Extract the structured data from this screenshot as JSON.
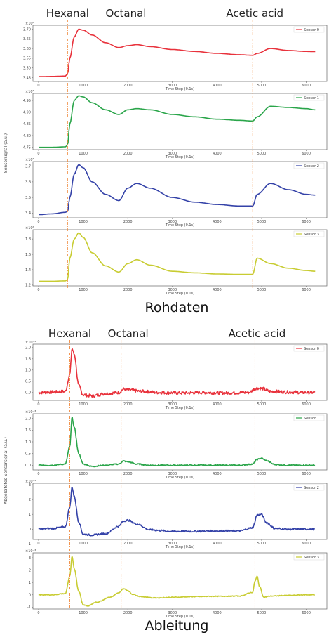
{
  "chart_data": [
    {
      "type": "line",
      "caption": "Rohdaten",
      "events": [
        {
          "label": "Hexanal",
          "x": 650
        },
        {
          "label": "Octanal",
          "x": 1800
        },
        {
          "label": "Acetic acid",
          "x": 4800
        }
      ],
      "ylabel": "Sensorsignal (a.u.)",
      "panels": [
        {
          "legend": "Sensor 0",
          "color": "#e8323c",
          "multiplier": "×10⁶",
          "xlabel": "Time Step (0.1s)",
          "ylim": [
            3.43,
            3.72
          ],
          "yticks": [
            "3.45",
            "3.50",
            "3.55",
            "3.60",
            "3.65",
            "3.70"
          ],
          "xticks": [
            "0",
            "1000",
            "2000",
            "3000",
            "4000",
            "5000",
            "6000"
          ],
          "x": [
            0,
            300,
            600,
            650,
            700,
            800,
            900,
            1000,
            1200,
            1500,
            1800,
            2000,
            2200,
            2500,
            3000,
            3500,
            4000,
            4500,
            4800,
            4900,
            5200,
            5600,
            6000,
            6200
          ],
          "y": [
            3.455,
            3.456,
            3.458,
            3.47,
            3.55,
            3.66,
            3.7,
            3.695,
            3.67,
            3.63,
            3.605,
            3.615,
            3.62,
            3.61,
            3.595,
            3.585,
            3.575,
            3.568,
            3.565,
            3.575,
            3.6,
            3.59,
            3.585,
            3.584
          ]
        },
        {
          "legend": "Sensor 1",
          "color": "#2aa54a",
          "multiplier": "×10⁶",
          "xlabel": "Time Step (0.1s)",
          "ylim": [
            4.74,
            4.98
          ],
          "yticks": [
            "4.75",
            "4.80",
            "4.85",
            "4.90",
            "4.95"
          ],
          "xticks": [
            "0",
            "1000",
            "2000",
            "3000",
            "4000",
            "5000",
            "6000"
          ],
          "x": [
            0,
            300,
            600,
            650,
            700,
            800,
            900,
            1000,
            1200,
            1500,
            1800,
            2000,
            2200,
            2500,
            3000,
            3500,
            4000,
            4500,
            4800,
            4900,
            5200,
            5600,
            6000,
            6200
          ],
          "y": [
            4.75,
            4.75,
            4.752,
            4.76,
            4.85,
            4.95,
            4.97,
            4.965,
            4.94,
            4.91,
            4.89,
            4.91,
            4.915,
            4.91,
            4.89,
            4.88,
            4.87,
            4.865,
            4.862,
            4.88,
            4.925,
            4.92,
            4.915,
            4.91
          ]
        },
        {
          "legend": "Sensor 2",
          "color": "#3442a8",
          "multiplier": "×10⁶",
          "xlabel": "Time Step (0.1s)",
          "ylim": [
            3.37,
            3.73
          ],
          "yticks": [
            "3.4",
            "3.5",
            "3.6",
            "3.7"
          ],
          "xticks": [
            "0",
            "1000",
            "2000",
            "3000",
            "4000",
            "5000",
            "6000"
          ],
          "x": [
            0,
            300,
            600,
            650,
            700,
            800,
            900,
            1000,
            1200,
            1500,
            1800,
            2000,
            2200,
            2500,
            3000,
            3500,
            4000,
            4500,
            4800,
            4900,
            5200,
            5600,
            6000,
            6200
          ],
          "y": [
            3.39,
            3.395,
            3.405,
            3.41,
            3.5,
            3.65,
            3.71,
            3.69,
            3.6,
            3.52,
            3.48,
            3.56,
            3.59,
            3.56,
            3.5,
            3.47,
            3.455,
            3.445,
            3.445,
            3.52,
            3.59,
            3.55,
            3.52,
            3.515
          ]
        },
        {
          "legend": "Sensor 3",
          "color": "#c8cc32",
          "multiplier": "×10⁶",
          "xlabel": "Time Step (0.1s)",
          "ylim": [
            1.19,
            1.92
          ],
          "yticks": [
            "1.2",
            "1.4",
            "1.6",
            "1.8"
          ],
          "xticks": [
            "0",
            "1000",
            "2000",
            "3000",
            "4000",
            "5000",
            "6000"
          ],
          "x": [
            0,
            300,
            600,
            650,
            700,
            800,
            900,
            1000,
            1200,
            1500,
            1800,
            2000,
            2200,
            2500,
            3000,
            3500,
            4000,
            4500,
            4800,
            4900,
            5200,
            5600,
            6000,
            6200
          ],
          "y": [
            1.25,
            1.25,
            1.255,
            1.27,
            1.55,
            1.8,
            1.88,
            1.82,
            1.62,
            1.45,
            1.37,
            1.48,
            1.53,
            1.46,
            1.38,
            1.36,
            1.345,
            1.34,
            1.34,
            1.55,
            1.48,
            1.42,
            1.39,
            1.38
          ]
        }
      ]
    },
    {
      "type": "line",
      "caption": "Ableitung",
      "events": [
        {
          "label": "Hexanal",
          "x": 700
        },
        {
          "label": "Octanal",
          "x": 1850
        },
        {
          "label": "Acetic acid",
          "x": 4850
        }
      ],
      "ylabel": "Abgeleitetes Sensorsignal (a.u.)",
      "panels": [
        {
          "legend": "Sensor 0",
          "color": "#e8323c",
          "multiplier": "×10⁻³",
          "xlabel": "Time Step (0.1s)",
          "ylim": [
            -0.35,
            2.15
          ],
          "yticks": [
            "0.0",
            "0.5",
            "1.0",
            "1.5",
            "2.0"
          ],
          "xticks": [
            "0",
            "1000",
            "2000",
            "3000",
            "4000",
            "5000",
            "6000"
          ],
          "x": [
            0,
            300,
            600,
            700,
            750,
            800,
            900,
            1000,
            1200,
            1500,
            1800,
            1900,
            2000,
            2300,
            2700,
            3200,
            3700,
            4200,
            4700,
            4900,
            5000,
            5200,
            5600,
            6000,
            6200
          ],
          "y": [
            0.0,
            0.02,
            0.05,
            0.8,
            1.95,
            1.7,
            0.3,
            -0.1,
            -0.15,
            -0.05,
            0.0,
            0.15,
            0.12,
            0.05,
            0.0,
            -0.02,
            0.0,
            -0.02,
            0.0,
            0.2,
            0.18,
            0.05,
            0.02,
            0.0,
            0.0
          ],
          "noise": 0.07
        },
        {
          "legend": "Sensor 1",
          "color": "#2aa54a",
          "multiplier": "×10⁻³",
          "xlabel": "Time Step (0.1s)",
          "ylim": [
            -0.2,
            2.2
          ],
          "yticks": [
            "0.0",
            "0.5",
            "1.0",
            "1.5",
            "2.0"
          ],
          "xticks": [
            "0",
            "1000",
            "2000",
            "3000",
            "4000",
            "5000",
            "6000"
          ],
          "x": [
            0,
            300,
            600,
            700,
            750,
            800,
            900,
            1000,
            1200,
            1500,
            1800,
            1900,
            2000,
            2200,
            2500,
            3000,
            3500,
            4000,
            4500,
            4800,
            4900,
            5000,
            5100,
            5300,
            5600,
            6000,
            6200
          ],
          "y": [
            0.0,
            0.0,
            0.05,
            0.8,
            2.05,
            1.6,
            0.5,
            0.05,
            -0.05,
            0.0,
            0.05,
            0.18,
            0.15,
            0.05,
            0.0,
            0.0,
            0.0,
            0.0,
            0.0,
            0.05,
            0.25,
            0.3,
            0.2,
            0.03,
            0.0,
            0.0,
            0.0
          ],
          "noise": 0.025
        },
        {
          "legend": "Sensor 2",
          "color": "#3442a8",
          "multiplier": "×10⁻³",
          "xlabel": "Time Step (0.1s)",
          "ylim": [
            -0.7,
            3.1
          ],
          "yticks": [
            "-1",
            "0",
            "1",
            "2",
            "3"
          ],
          "xticks": [
            "0",
            "1000",
            "2000",
            "3000",
            "4000",
            "5000",
            "6000"
          ],
          "x": [
            0,
            300,
            600,
            700,
            750,
            800,
            900,
            1000,
            1200,
            1500,
            1800,
            1900,
            2000,
            2200,
            2500,
            3000,
            3500,
            4000,
            4500,
            4800,
            4900,
            5000,
            5100,
            5300,
            5600,
            6000,
            6200
          ],
          "y": [
            0.0,
            0.05,
            0.15,
            1.5,
            2.85,
            2.2,
            0.5,
            -0.35,
            -0.4,
            -0.3,
            0.2,
            0.55,
            0.6,
            0.35,
            -0.05,
            -0.15,
            -0.15,
            -0.12,
            -0.12,
            0.1,
            0.95,
            1.0,
            0.45,
            0.05,
            0.0,
            0.0,
            0.0
          ],
          "noise": 0.06
        },
        {
          "legend": "Sensor 3",
          "color": "#c8cc32",
          "multiplier": "×10⁻³",
          "xlabel": "Time Step (0.1s)",
          "ylim": [
            -1.15,
            3.4
          ],
          "yticks": [
            "-1",
            "0",
            "1",
            "2",
            "3"
          ],
          "xticks": [
            "0",
            "1000",
            "2000",
            "3000",
            "4000",
            "5000",
            "6000"
          ],
          "x": [
            0,
            300,
            600,
            700,
            750,
            800,
            900,
            1000,
            1100,
            1300,
            1600,
            1800,
            1900,
            2000,
            2100,
            2300,
            2600,
            3000,
            3500,
            4000,
            4500,
            4800,
            4850,
            4900,
            4950,
            5050,
            5200,
            5600,
            6000,
            6200
          ],
          "y": [
            0.0,
            0.0,
            0.1,
            1.5,
            3.1,
            2.1,
            0.3,
            -0.8,
            -0.9,
            -0.6,
            -0.2,
            0.15,
            0.5,
            0.35,
            0.05,
            -0.15,
            -0.25,
            -0.2,
            -0.15,
            -0.12,
            -0.1,
            0.2,
            1.1,
            1.5,
            0.7,
            -0.2,
            -0.1,
            -0.05,
            0.0,
            0.0
          ],
          "noise": 0.03
        }
      ]
    }
  ]
}
